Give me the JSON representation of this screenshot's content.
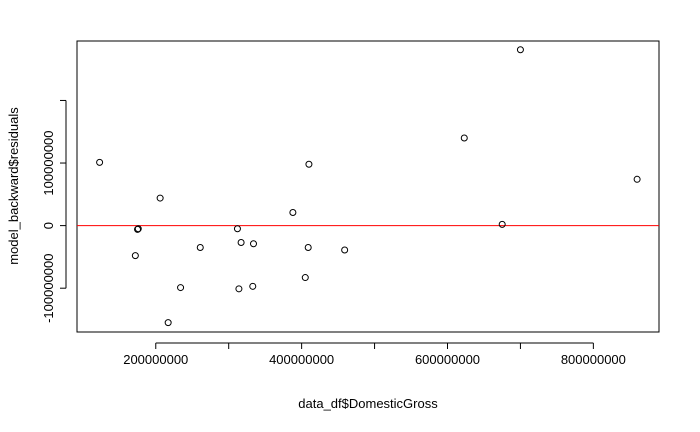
{
  "chart_data": {
    "type": "scatter",
    "title": "",
    "xlabel": "data_df$DomesticGross",
    "ylabel": "model_backward$residuals",
    "xlim": [
      92000000,
      890000000
    ],
    "ylim": [
      -170000000,
      295000000
    ],
    "xticks": [
      {
        "value": 200000000,
        "label": "200000000"
      },
      {
        "value": 300000000,
        "label": ""
      },
      {
        "value": 400000000,
        "label": "400000000"
      },
      {
        "value": 500000000,
        "label": ""
      },
      {
        "value": 600000000,
        "label": "600000000"
      },
      {
        "value": 700000000,
        "label": ""
      },
      {
        "value": 800000000,
        "label": "800000000"
      }
    ],
    "yticks": [
      {
        "value": -100000000,
        "label": "-100000000"
      },
      {
        "value": 0,
        "label": "0"
      },
      {
        "value": 100000000,
        "label": "100000000"
      },
      {
        "value": 200000000,
        "label": ""
      }
    ],
    "reference_line": {
      "y": 0,
      "color": "#ff0000"
    },
    "points": [
      {
        "x": 123000000,
        "y": 101000000
      },
      {
        "x": 172000000,
        "y": -48000000
      },
      {
        "x": 175000000,
        "y": -6000000
      },
      {
        "x": 176000000,
        "y": -5000000
      },
      {
        "x": 206000000,
        "y": 44000000
      },
      {
        "x": 217000000,
        "y": -155000000
      },
      {
        "x": 234000000,
        "y": -99000000
      },
      {
        "x": 261000000,
        "y": -35000000
      },
      {
        "x": 312000000,
        "y": -5000000
      },
      {
        "x": 314000000,
        "y": -101000000
      },
      {
        "x": 317000000,
        "y": -27000000
      },
      {
        "x": 333000000,
        "y": -97000000
      },
      {
        "x": 334000000,
        "y": -29000000
      },
      {
        "x": 388000000,
        "y": 21000000
      },
      {
        "x": 405000000,
        "y": -83000000
      },
      {
        "x": 409000000,
        "y": -35000000
      },
      {
        "x": 410000000,
        "y": 98000000
      },
      {
        "x": 459000000,
        "y": -39000000
      },
      {
        "x": 623000000,
        "y": 140000000
      },
      {
        "x": 675000000,
        "y": 2000000
      },
      {
        "x": 700000000,
        "y": 281000000
      },
      {
        "x": 860000000,
        "y": 74000000
      }
    ]
  }
}
